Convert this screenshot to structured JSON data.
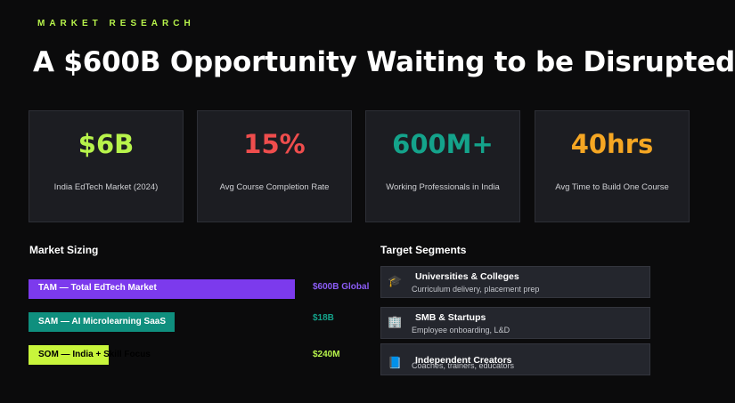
{
  "eyebrow": "MARKET RESEARCH",
  "title": "A $600B Opportunity Waiting to be Disrupted",
  "stats": [
    {
      "value": "$6B",
      "label": "India EdTech Market (2024)",
      "color": "#b7f34b"
    },
    {
      "value": "15%",
      "label": "Avg Course Completion Rate",
      "color": "#ef4d4d"
    },
    {
      "value": "600M+",
      "label": "Working Professionals in India",
      "color": "#14a38b"
    },
    {
      "value": "40hrs",
      "label": "Avg Time to Build One Course",
      "color": "#f5a623"
    }
  ],
  "market_sizing": {
    "heading": "Market Sizing",
    "bars": [
      {
        "label": "TAM — Total EdTech Market",
        "value": "$600B Global",
        "color": "#7c3aed",
        "text_color": "#ffffff",
        "value_color": "#8b5cf6",
        "relative_size": 1.0
      },
      {
        "label": "SAM — AI Microlearning SaaS",
        "value": "$18B",
        "color": "#0f8f7e",
        "text_color": "#ffffff",
        "value_color": "#14a38b",
        "relative_size": 0.55
      },
      {
        "label": "SOM — India + Skill Focus",
        "value": "$240M",
        "color": "#c8f53b",
        "text_color": "#000000",
        "value_color": "#b7f34b",
        "relative_size": 0.3
      }
    ]
  },
  "target_segments": {
    "heading": "Target Segments",
    "items": [
      {
        "icon": "graduation-cap-icon",
        "glyph": "🎓",
        "title": "Universities & Colleges",
        "subtitle": "Curriculum delivery, placement prep"
      },
      {
        "icon": "office-building-icon",
        "glyph": "🏢",
        "title": "SMB & Startups",
        "subtitle": "Employee onboarding, L&D"
      },
      {
        "icon": "notebook-icon",
        "glyph": "📘",
        "title": "Independent Creators",
        "subtitle": "Coaches, trainers, educators"
      }
    ]
  }
}
